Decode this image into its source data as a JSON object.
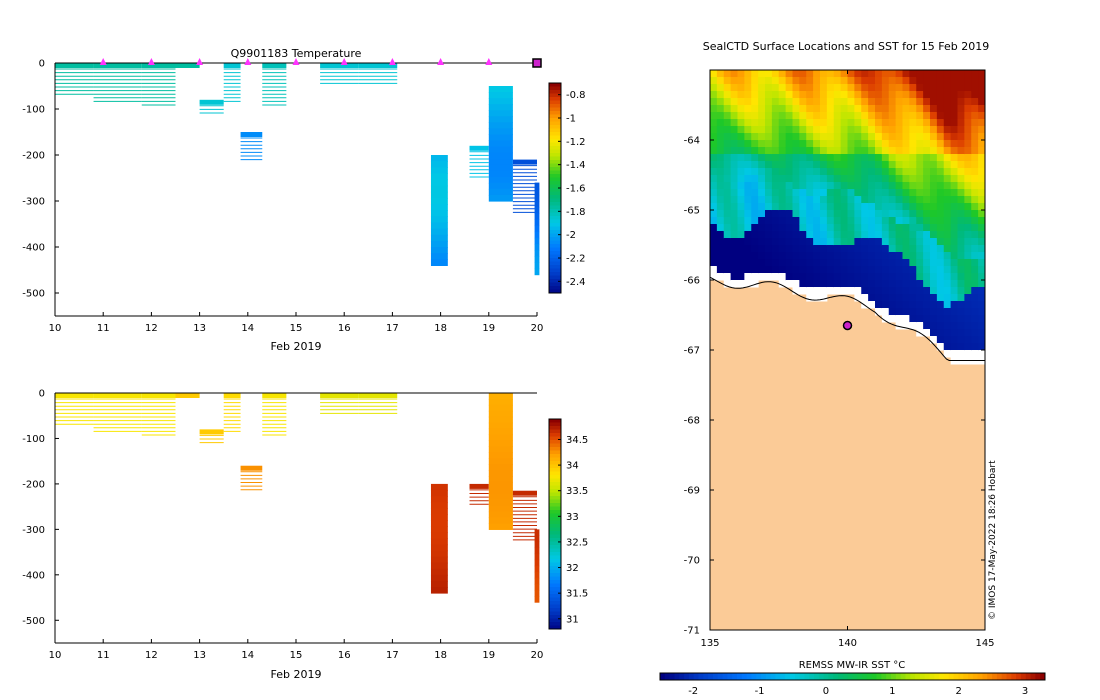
{
  "chart_data": [
    {
      "type": "heatmap",
      "title": "Q9901183  Temperature",
      "xlabel": "Feb 2019",
      "ylabel": "",
      "xlim": [
        10,
        20
      ],
      "ylim": [
        -550,
        0
      ],
      "xticks": [
        "10",
        "11",
        "12",
        "13",
        "14",
        "15",
        "16",
        "17",
        "18",
        "19",
        "20"
      ],
      "yticks": [
        "0",
        "-100",
        "-200",
        "-300",
        "-400",
        "-500"
      ],
      "colorbar": {
        "min": -2.5,
        "max": -0.7,
        "ticks": [
          "-0.8",
          "-1",
          "-1.2",
          "-1.4",
          "-1.6",
          "-1.8",
          "-2",
          "-2.2",
          "-2.4"
        ]
      },
      "surface_markers_day": [
        11.0,
        12.0,
        13.0,
        14.0,
        15.0,
        16.0,
        17.0,
        18.0,
        19.0
      ],
      "current_position_day": 20.0,
      "profiles": [
        {
          "start": 10.0,
          "end": 10.8,
          "from": 0,
          "to": -70,
          "value": -1.75
        },
        {
          "start": 10.8,
          "end": 11.8,
          "from": 0,
          "to": -85,
          "value": -1.75
        },
        {
          "start": 11.8,
          "end": 12.5,
          "from": 0,
          "to": -95,
          "value": -1.75
        },
        {
          "start": 12.5,
          "end": 13.0,
          "from": 0,
          "to": -12,
          "value": -1.75
        },
        {
          "start": 13.0,
          "end": 13.5,
          "from": -80,
          "to": -115,
          "value": -1.85
        },
        {
          "start": 13.5,
          "end": 13.85,
          "from": 0,
          "to": -90,
          "value": -1.85
        },
        {
          "start": 13.85,
          "end": 14.3,
          "from": -150,
          "to": -215,
          "value": -2.05
        },
        {
          "start": 14.3,
          "end": 14.8,
          "from": 0,
          "to": -95,
          "value": -1.8
        },
        {
          "start": 15.5,
          "end": 16.3,
          "from": 0,
          "to": -50,
          "value": -1.85
        },
        {
          "start": 16.3,
          "end": 17.1,
          "from": 0,
          "to": -45,
          "value": -1.85
        },
        {
          "start": 17.8,
          "end": 18.15,
          "from": -200,
          "to": -440,
          "value": -2.0
        },
        {
          "start": 18.6,
          "end": 19.0,
          "from": -180,
          "to": -250,
          "value": -1.9
        },
        {
          "start": 19.0,
          "end": 19.5,
          "from": -50,
          "to": -300,
          "value": -1.95
        },
        {
          "start": 19.5,
          "end": 20.0,
          "from": -210,
          "to": -325,
          "value": -2.25
        },
        {
          "start": 19.95,
          "end": 20.05,
          "from": -260,
          "to": -460,
          "value": -2.1
        }
      ]
    },
    {
      "type": "heatmap",
      "title": "",
      "xlabel": "Feb 2019",
      "ylabel": "",
      "xlim": [
        10,
        20
      ],
      "ylim": [
        -550,
        0
      ],
      "xticks": [
        "10",
        "11",
        "12",
        "13",
        "14",
        "15",
        "16",
        "17",
        "18",
        "19",
        "20"
      ],
      "yticks": [
        "0",
        "-100",
        "-200",
        "-300",
        "-400",
        "-500"
      ],
      "colorbar": {
        "min": 30.8,
        "max": 34.9,
        "ticks": [
          "34.5",
          "34",
          "33.5",
          "33",
          "32.5",
          "32",
          "31.5",
          "31"
        ]
      },
      "profiles": [
        {
          "start": 10.0,
          "end": 10.8,
          "from": 0,
          "to": -70,
          "value": 33.8
        },
        {
          "start": 10.8,
          "end": 11.8,
          "from": 0,
          "to": -85,
          "value": 33.8
        },
        {
          "start": 11.8,
          "end": 12.5,
          "from": 0,
          "to": -95,
          "value": 33.8
        },
        {
          "start": 12.5,
          "end": 13.0,
          "from": 0,
          "to": -12,
          "value": 34.0
        },
        {
          "start": 13.0,
          "end": 13.5,
          "from": -80,
          "to": -115,
          "value": 34.0
        },
        {
          "start": 13.5,
          "end": 13.85,
          "from": 0,
          "to": -90,
          "value": 33.9
        },
        {
          "start": 13.85,
          "end": 14.3,
          "from": -160,
          "to": -215,
          "value": 34.3
        },
        {
          "start": 14.3,
          "end": 14.8,
          "from": 0,
          "to": -95,
          "value": 33.8
        },
        {
          "start": 15.5,
          "end": 16.3,
          "from": 0,
          "to": -50,
          "value": 33.7
        },
        {
          "start": 16.3,
          "end": 17.1,
          "from": 0,
          "to": -45,
          "value": 33.7
        },
        {
          "start": 17.8,
          "end": 18.15,
          "from": -200,
          "to": -440,
          "value": 34.7
        },
        {
          "start": 18.6,
          "end": 19.0,
          "from": -200,
          "to": -250,
          "value": 34.7
        },
        {
          "start": 19.0,
          "end": 19.5,
          "from": 0,
          "to": -300,
          "value": 34.2
        },
        {
          "start": 19.5,
          "end": 20.0,
          "from": -215,
          "to": -325,
          "value": 34.7
        },
        {
          "start": 19.95,
          "end": 20.05,
          "from": -300,
          "to": -460,
          "value": 34.6
        }
      ]
    },
    {
      "type": "heatmap",
      "title": "SealCTD Surface Locations and SST for 15 Feb 2019",
      "xlabel": "",
      "ylabel": "",
      "xlim": [
        135,
        145
      ],
      "ylim": [
        -71,
        -63
      ],
      "xticks": [
        "135",
        "140",
        "145"
      ],
      "yticks": [
        "-64",
        "-65",
        "-66",
        "-67",
        "-68",
        "-69",
        "-70",
        "-71"
      ],
      "colorbar": {
        "label": "REMSS MW-IR SST °C",
        "min": -2.5,
        "max": 3.3,
        "ticks": [
          "-2",
          "-1",
          "0",
          "1",
          "2",
          "3"
        ]
      },
      "seal_position": {
        "lon": 140.0,
        "lat": -66.65
      },
      "watermark": "© IMOS 17-May-2022 18:26 Hobart"
    }
  ]
}
